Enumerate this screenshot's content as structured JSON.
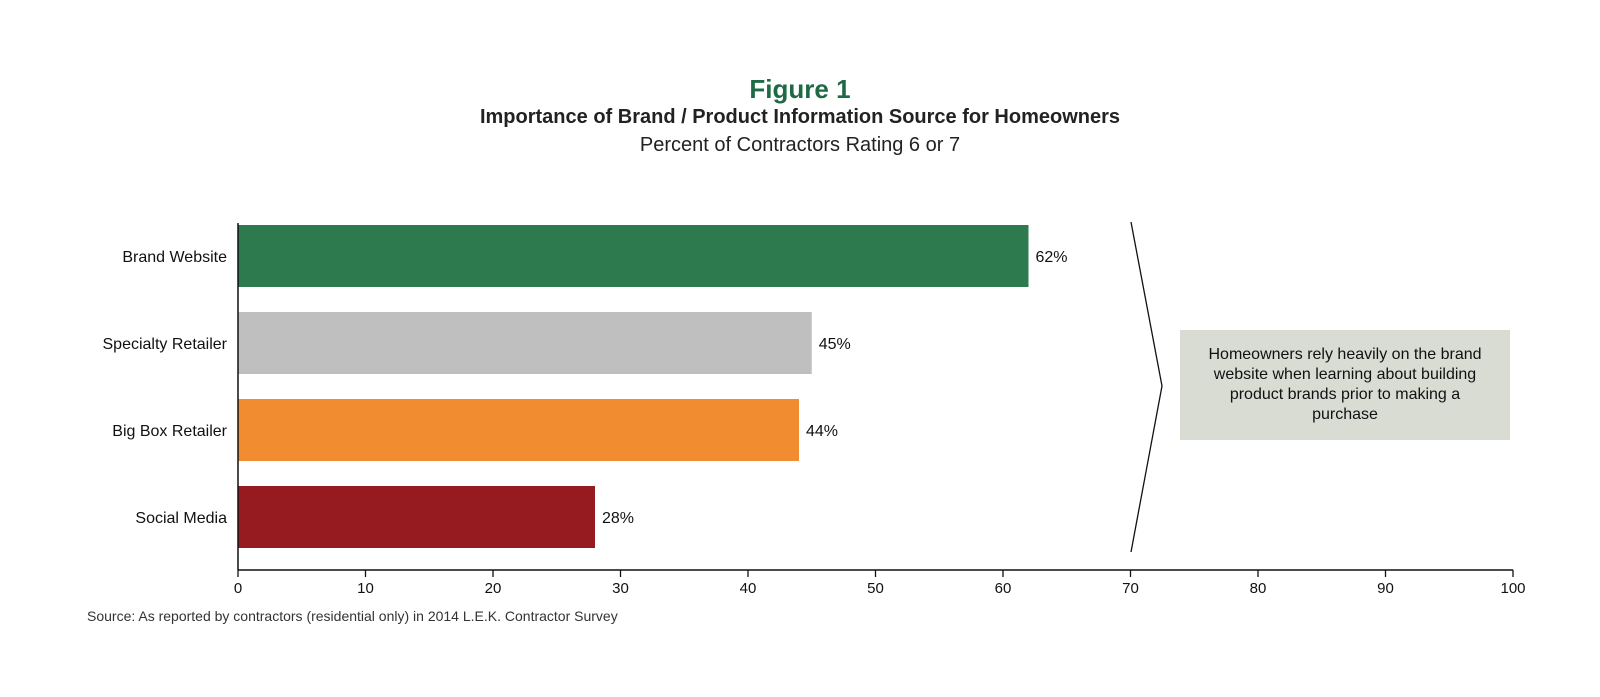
{
  "figure_label": "Figure 1",
  "callout": "Homeowners rely heavily on the brand website when learning about building product brands prior to making a purchase",
  "source": "Source: As reported by contractors (residential only) in 2014 L.E.K. Contractor Survey",
  "chart_data": {
    "type": "bar",
    "orientation": "horizontal",
    "title": "Importance of Brand  / Product Information Source for Homeowners",
    "subtitle": "Percent of Contractors Rating 6 or 7",
    "categories": [
      "Brand Website",
      "Specialty Retailer",
      "Big Box Retailer",
      "Social Media"
    ],
    "values": [
      62,
      45,
      44,
      28
    ],
    "value_labels": [
      "62%",
      "45%",
      "44%",
      "28%"
    ],
    "colors": [
      "#2e7a4f",
      "#c0bfbf",
      "#f28c30",
      "#961b20"
    ],
    "xlim": [
      0,
      100
    ],
    "xticks": [
      0,
      10,
      20,
      30,
      40,
      50,
      60,
      70,
      80,
      90,
      100
    ],
    "grid": false,
    "legend": "none"
  }
}
